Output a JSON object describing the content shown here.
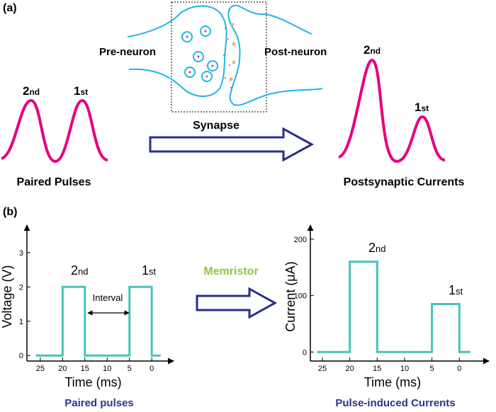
{
  "panel_a": {
    "label": "(a)",
    "pre_neuron": "Pre-neuron",
    "post_neuron": "Post-neuron",
    "synapse": "Synapse",
    "input_caption": "Paired Pulses",
    "output_caption": "Postsynaptic Currents",
    "input_pulses": [
      {
        "ordinal": "2",
        "suffix": "nd"
      },
      {
        "ordinal": "1",
        "suffix": "st"
      }
    ],
    "output_pulses": [
      {
        "ordinal": "2",
        "suffix": "nd"
      },
      {
        "ordinal": "1",
        "suffix": "st"
      }
    ]
  },
  "panel_b": {
    "label": "(b)",
    "device": "Memristor"
  },
  "chart_data": [
    {
      "type": "line",
      "xlabel": "Time (ms)",
      "ylabel": "Voltage (V)",
      "caption": "Paired pulses",
      "x": [
        26,
        20,
        20,
        15,
        15,
        5,
        5,
        0,
        0,
        -2
      ],
      "series": [
        {
          "color": "#45c3bd",
          "values": [
            0,
            0,
            2,
            2,
            0,
            0,
            2,
            2,
            0,
            0
          ]
        }
      ],
      "xlim": [
        28,
        -4.9
      ],
      "xticks": [
        25,
        20,
        15,
        10,
        5,
        0
      ],
      "ylim": [
        -0.16,
        3.8
      ],
      "yticks": [
        0,
        1,
        2,
        3
      ],
      "annotations": [
        {
          "ordinal": "2",
          "suffix": "nd"
        },
        {
          "ordinal": "1",
          "suffix": "st"
        }
      ],
      "interval": "Interval"
    },
    {
      "type": "line",
      "xlabel": "Time (ms)",
      "ylabel": "Current (μA)",
      "caption": "Pulse-induced Currents",
      "x": [
        26,
        20,
        20,
        15,
        15,
        5,
        5,
        0,
        0,
        -2
      ],
      "series": [
        {
          "color": "#45c3bd",
          "values": [
            0,
            0,
            160,
            160,
            0,
            0,
            85,
            85,
            0,
            0
          ]
        }
      ],
      "xlim": [
        27.2,
        -5.4
      ],
      "xticks": [
        25,
        20,
        15,
        10,
        5,
        0
      ],
      "ylim": [
        -16,
        225
      ],
      "yticks": [
        0,
        100,
        200
      ],
      "annotations": [
        {
          "ordinal": "2",
          "suffix": "nd"
        },
        {
          "ordinal": "1",
          "suffix": "st"
        }
      ]
    }
  ]
}
